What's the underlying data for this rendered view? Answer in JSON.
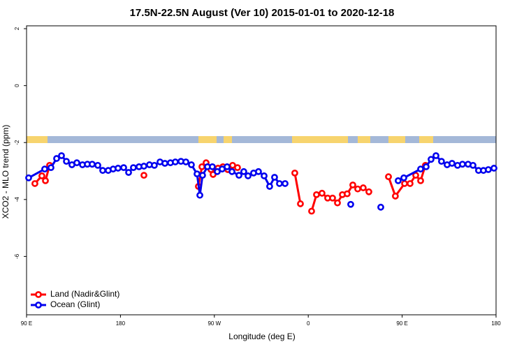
{
  "chart_data": {
    "type": "line",
    "title": "17.5N-22.5N August (Ver 10)   2015-01-01 to 2020-12-18",
    "x_label": "Longitude (deg E)",
    "y_label": "XCO2 - MLO trend (ppm)",
    "xlim": [
      90,
      540
    ],
    "xticks": [
      {
        "value": 90,
        "label": "90 E"
      },
      180,
      {
        "value": 270,
        "label": "90 W"
      },
      {
        "value": 360,
        "label": "0"
      },
      {
        "value": 450,
        "label": "90 E"
      },
      {
        "value": 540,
        "label": "180"
      }
    ],
    "ylim": [
      -8.05,
      2.1
    ],
    "yticks": [
      -6,
      -4,
      -2,
      0,
      2
    ],
    "legend": "bottom-left",
    "series": [
      {
        "name": "Land (Nadir&Glint)",
        "color": "#ff0000",
        "x": [
          98.0,
          104.7,
          108.1,
          112.1,
          null,
          202.5,
          null,
          254.7,
          258.1,
          262.1,
          266.8,
          268.8,
          273.5,
          278.2,
          282.9,
          287.5,
          292.2,
          null,
          347.1,
          352.5,
          null,
          363.2,
          367.9,
          373.2,
          378.6,
          383.3,
          388.0,
          392.7,
          397.3,
          402.7,
          407.4,
          412.7,
          418.1,
          null,
          436.9,
          443.5,
          452.3,
          457.6,
          463.0,
          467.7,
          472.3
        ],
        "values": [
          -3.44,
          -3.17,
          -3.34,
          -2.8,
          null,
          -3.15,
          null,
          -3.54,
          -2.85,
          -2.71,
          -2.95,
          -3.12,
          -2.9,
          -2.85,
          -2.95,
          -2.8,
          -2.88,
          null,
          -3.07,
          -4.15,
          null,
          -4.41,
          -3.83,
          -3.78,
          -3.95,
          -3.95,
          -4.12,
          -3.83,
          -3.8,
          -3.49,
          -3.63,
          -3.59,
          -3.73,
          null,
          -3.2,
          -3.88,
          -3.44,
          -3.44,
          -3.15,
          -3.34,
          -2.8
        ]
      },
      {
        "name": "Ocean (Glint)",
        "color": "#0000ee",
        "x": [
          92.0,
          107.4,
          113.4,
          118.8,
          123.5,
          128.2,
          133.5,
          138.2,
          143.6,
          148.3,
          152.9,
          158.3,
          163.0,
          168.3,
          173.0,
          177.7,
          183.1,
          187.8,
          192.4,
          197.8,
          202.5,
          207.8,
          212.5,
          217.9,
          222.6,
          227.9,
          232.6,
          238.0,
          242.7,
          248.0,
          253.4,
          256.1,
          258.7,
          263.4,
          268.1,
          272.8,
          277.5,
          282.2,
          286.9,
          293.6,
          298.2,
          302.3,
          307.6,
          312.3,
          317.7,
          323.0,
          327.7,
          332.4,
          337.8,
          null,
          400.7,
          null,
          429.5,
          null,
          446.2,
          451.6,
          467.7,
          473.0,
          477.7,
          482.4,
          487.7,
          493.1,
          497.8,
          503.1,
          507.8,
          513.2,
          517.9,
          523.2,
          527.9,
          532.6,
          538.0
        ],
        "values": [
          -3.24,
          -2.93,
          -2.88,
          -2.56,
          -2.46,
          -2.66,
          -2.78,
          -2.71,
          -2.78,
          -2.76,
          -2.76,
          -2.8,
          -2.98,
          -2.98,
          -2.93,
          -2.9,
          -2.88,
          -3.05,
          -2.88,
          -2.85,
          -2.83,
          -2.78,
          -2.8,
          -2.68,
          -2.73,
          -2.71,
          -2.68,
          -2.66,
          -2.68,
          -2.78,
          -3.1,
          -3.85,
          -3.15,
          -2.85,
          -2.85,
          -3.02,
          -2.93,
          -2.85,
          -3.02,
          -3.15,
          -3.02,
          -3.17,
          -3.07,
          -3.02,
          -3.17,
          -3.54,
          -3.22,
          -3.44,
          -3.44,
          null,
          -4.17,
          null,
          -4.27,
          null,
          -3.34,
          -3.24,
          -2.93,
          -2.85,
          -2.59,
          -2.46,
          -2.66,
          -2.78,
          -2.73,
          -2.8,
          -2.76,
          -2.76,
          -2.8,
          -2.98,
          -2.98,
          -2.95,
          -2.9
        ]
      }
    ]
  }
}
